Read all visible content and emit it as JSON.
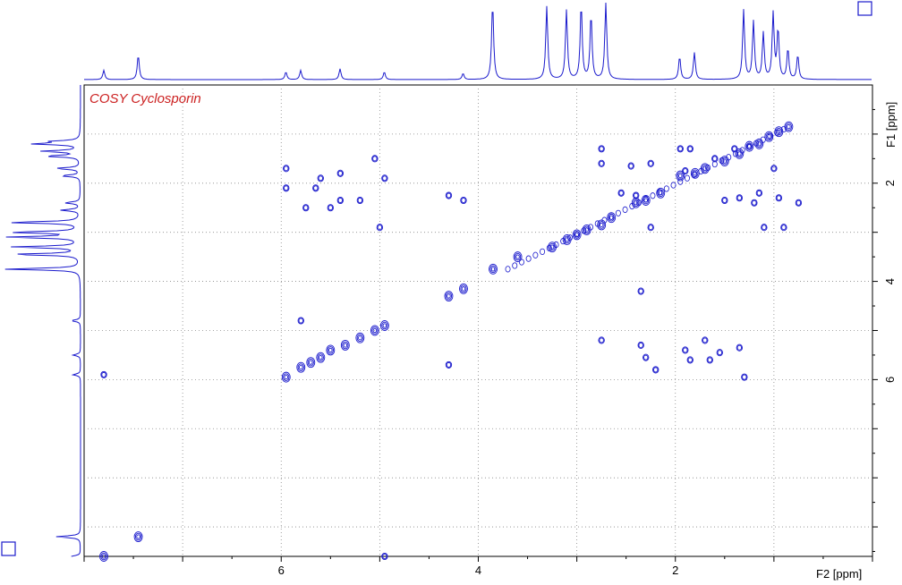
{
  "colors": {
    "spectrum": "#1a1acc",
    "title": "#cc2222",
    "grid": "#888888",
    "frame": "#000000"
  },
  "icons": {
    "top_right": "square-icon",
    "bottom_left": "square-icon"
  },
  "chart_data": {
    "type": "heatmap",
    "subtype": "2D COSY NMR contour plot",
    "title": "COSY Cyclosporin",
    "xlabel": "F2 [ppm]",
    "ylabel": "F1 [ppm]",
    "xlim": [
      8.0,
      0.0
    ],
    "ylim": [
      0.0,
      9.6
    ],
    "x_ticks": [
      "6",
      "4",
      "2"
    ],
    "y_ticks": [
      "2",
      "4",
      "6"
    ],
    "grid": true,
    "diagonal_peaks": [
      [
        7.8,
        9.6
      ],
      [
        7.45,
        9.2
      ],
      [
        5.95,
        5.95
      ],
      [
        5.8,
        5.75
      ],
      [
        5.7,
        5.65
      ],
      [
        5.6,
        5.55
      ],
      [
        5.5,
        5.4
      ],
      [
        5.35,
        5.3
      ],
      [
        5.2,
        5.15
      ],
      [
        5.05,
        5.0
      ],
      [
        4.95,
        4.9
      ],
      [
        4.3,
        4.3
      ],
      [
        4.15,
        4.15
      ],
      [
        3.85,
        3.75
      ],
      [
        3.6,
        3.5
      ],
      [
        3.25,
        3.3
      ],
      [
        3.1,
        3.15
      ],
      [
        3.0,
        3.05
      ],
      [
        2.9,
        2.95
      ],
      [
        2.75,
        2.85
      ],
      [
        2.65,
        2.7
      ],
      [
        2.4,
        2.4
      ],
      [
        2.3,
        2.35
      ],
      [
        2.15,
        2.2
      ],
      [
        1.95,
        1.85
      ],
      [
        1.8,
        1.8
      ],
      [
        1.7,
        1.7
      ],
      [
        1.5,
        1.55
      ],
      [
        1.35,
        1.4
      ],
      [
        1.25,
        1.25
      ],
      [
        1.15,
        1.2
      ],
      [
        1.05,
        1.05
      ],
      [
        0.95,
        0.95
      ],
      [
        0.85,
        0.85
      ]
    ],
    "cross_peaks": [
      [
        7.8,
        5.9
      ],
      [
        5.95,
        2.1
      ],
      [
        5.95,
        1.7
      ],
      [
        5.75,
        2.5
      ],
      [
        5.8,
        4.8
      ],
      [
        5.65,
        2.1
      ],
      [
        5.6,
        1.9
      ],
      [
        5.5,
        2.5
      ],
      [
        5.4,
        1.8
      ],
      [
        5.4,
        2.35
      ],
      [
        5.2,
        2.35
      ],
      [
        5.05,
        1.5
      ],
      [
        5.0,
        2.9
      ],
      [
        4.95,
        1.9
      ],
      [
        4.95,
        9.6
      ],
      [
        4.3,
        2.25
      ],
      [
        4.3,
        5.7
      ],
      [
        4.15,
        2.35
      ],
      [
        2.75,
        1.3
      ],
      [
        2.75,
        1.6
      ],
      [
        2.75,
        5.2
      ],
      [
        2.55,
        2.2
      ],
      [
        2.45,
        1.65
      ],
      [
        2.4,
        2.25
      ],
      [
        2.35,
        4.2
      ],
      [
        2.35,
        5.3
      ],
      [
        2.3,
        5.55
      ],
      [
        2.25,
        1.6
      ],
      [
        2.25,
        2.9
      ],
      [
        2.2,
        5.8
      ],
      [
        1.95,
        1.3
      ],
      [
        1.9,
        1.75
      ],
      [
        1.85,
        1.3
      ],
      [
        1.9,
        5.4
      ],
      [
        1.85,
        5.6
      ],
      [
        1.7,
        5.2
      ],
      [
        1.65,
        5.6
      ],
      [
        1.6,
        1.5
      ],
      [
        1.55,
        5.45
      ],
      [
        1.5,
        2.35
      ],
      [
        1.4,
        1.3
      ],
      [
        1.35,
        2.3
      ],
      [
        1.35,
        5.35
      ],
      [
        1.3,
        5.95
      ],
      [
        1.2,
        2.4
      ],
      [
        1.15,
        2.2
      ],
      [
        1.1,
        2.9
      ],
      [
        1.0,
        1.7
      ],
      [
        0.95,
        2.3
      ],
      [
        0.9,
        2.9
      ],
      [
        0.75,
        2.4
      ]
    ],
    "proj_f2_peaks": [
      [
        7.8,
        0.12
      ],
      [
        7.45,
        0.32
      ],
      [
        5.95,
        0.1
      ],
      [
        5.8,
        0.12
      ],
      [
        5.4,
        0.14
      ],
      [
        4.95,
        0.1
      ],
      [
        4.15,
        0.08
      ],
      [
        3.85,
        1.0
      ],
      [
        3.3,
        0.95
      ],
      [
        3.1,
        0.9
      ],
      [
        2.95,
        0.98
      ],
      [
        2.85,
        0.85
      ],
      [
        2.7,
        1.0
      ],
      [
        1.95,
        0.3
      ],
      [
        1.8,
        0.35
      ],
      [
        1.3,
        0.9
      ],
      [
        1.2,
        0.75
      ],
      [
        1.1,
        0.6
      ],
      [
        1.0,
        0.85
      ],
      [
        0.95,
        0.65
      ],
      [
        0.85,
        0.4
      ],
      [
        0.75,
        0.32
      ]
    ]
  }
}
